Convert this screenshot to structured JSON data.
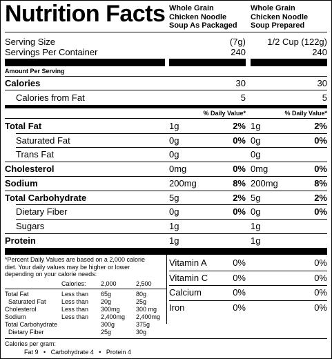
{
  "title": "Nutrition Facts",
  "columns": [
    {
      "label_lines": [
        "Whole Grain",
        "Chicken Noodle",
        "Soup As Packaged"
      ]
    },
    {
      "label_lines": [
        "Whole Grain",
        "Chicken Noodle",
        "Soup Prepared"
      ]
    }
  ],
  "serving": {
    "size_label": "Serving Size",
    "servings_label": "Servings Per Container",
    "col1_size": "(7g)",
    "col2_size": "1/2 Cup  (122g)",
    "col1_servings": "240",
    "col2_servings": "240"
  },
  "amount_per_serving": "Amount Per Serving",
  "calories": {
    "label": "Calories",
    "col1": "30",
    "col2": "30"
  },
  "calories_from_fat": {
    "label": "Calories from Fat",
    "col1": "5",
    "col2": "5"
  },
  "daily_value_header": "% Daily Value*",
  "nutrients": [
    {
      "label": "Total Fat",
      "bold": true,
      "c1_amt": "1g",
      "c1_dv": "2%",
      "c2_amt": "1g",
      "c2_dv": "2%"
    },
    {
      "label": "Saturated Fat",
      "bold": false,
      "c1_amt": "0g",
      "c1_dv": "0%",
      "c2_amt": "0g",
      "c2_dv": "0%"
    },
    {
      "label": "Trans Fat",
      "bold": false,
      "c1_amt": "0g",
      "c1_dv": "",
      "c2_amt": "0g",
      "c2_dv": ""
    },
    {
      "label": "Cholesterol",
      "bold": true,
      "c1_amt": "0mg",
      "c1_dv": "0%",
      "c2_amt": "0mg",
      "c2_dv": "0%"
    },
    {
      "label": "Sodium",
      "bold": true,
      "c1_amt": "200mg",
      "c1_dv": "8%",
      "c2_amt": "200mg",
      "c2_dv": "8%"
    },
    {
      "label": "Total Carbohydrate",
      "bold": true,
      "c1_amt": "5g",
      "c1_dv": "2%",
      "c2_amt": "5g",
      "c2_dv": "2%"
    },
    {
      "label": "Dietary Fiber",
      "bold": false,
      "c1_amt": "0g",
      "c1_dv": "0%",
      "c2_amt": "0g",
      "c2_dv": "0%"
    },
    {
      "label": "Sugars",
      "bold": false,
      "c1_amt": "1g",
      "c1_dv": "",
      "c2_amt": "1g",
      "c2_dv": ""
    },
    {
      "label": "Protein",
      "bold": true,
      "c1_amt": "1g",
      "c1_dv": "",
      "c2_amt": "1g",
      "c2_dv": ""
    }
  ],
  "vitamins": [
    {
      "label": "Vitamin A",
      "c1": "0%",
      "c2": "0%"
    },
    {
      "label": "Vitamin C",
      "c1": "0%",
      "c2": "0%"
    },
    {
      "label": "Calcium",
      "c1": "0%",
      "c2": "0%"
    },
    {
      "label": "Iron",
      "c1": "0%",
      "c2": "0%"
    }
  ],
  "footnote": {
    "lines": [
      "*Percent Daily Values are based on a 2,000 calorie",
      "diet. Your daily values may be higher or lower",
      "depending on your calorie needs:"
    ],
    "calories_label": "Calories:",
    "cal_2000": "2,000",
    "cal_2500": "2,500",
    "table": [
      {
        "name": "Total Fat",
        "lt": "Less than",
        "a": "65g",
        "b": "80g"
      },
      {
        "name": "  Saturated Fat",
        "lt": "Less than",
        "a": "20g",
        "b": "25g"
      },
      {
        "name": "Cholesterol",
        "lt": "Less than",
        "a": "300mg",
        "b": "300 mg"
      },
      {
        "name": "Sodium",
        "lt": "Less than",
        "a": "2,400mg",
        "b": "2,400mg"
      },
      {
        "name": "Total Carbohydrate",
        "lt": "",
        "a": "300g",
        "b": "375g"
      },
      {
        "name": "  Dietary Fiber",
        "lt": "",
        "a": "25g",
        "b": "30g"
      }
    ],
    "per_gram_title": "Calories per gram:",
    "per_gram_values": "Fat 9   •   Carbohydrate 4   •   Protein 4"
  }
}
